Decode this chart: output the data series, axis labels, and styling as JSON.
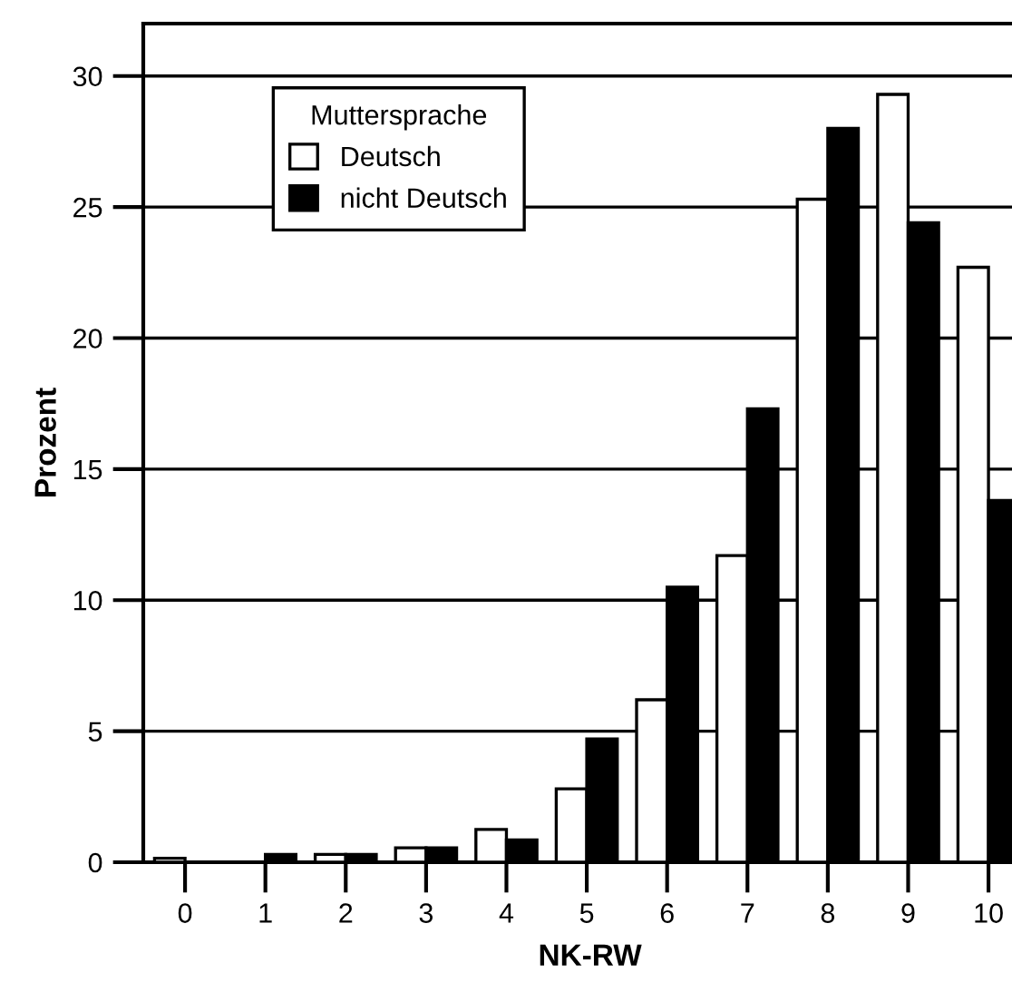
{
  "chart_data": {
    "type": "bar",
    "xlabel": "NK-RW",
    "ylabel": "Prozent",
    "legend_title": "Muttersprache",
    "categories": [
      "0",
      "1",
      "2",
      "3",
      "4",
      "5",
      "6",
      "7",
      "8",
      "9",
      "10"
    ],
    "series": [
      {
        "name": "Deutsch",
        "color": "#ffffff",
        "values": [
          0.15,
          null,
          0.3,
          0.55,
          1.25,
          2.8,
          6.2,
          11.7,
          25.3,
          29.3,
          22.7
        ]
      },
      {
        "name": "nicht Deutsch",
        "color": "#000000",
        "values": [
          null,
          0.3,
          0.3,
          0.55,
          0.85,
          4.7,
          10.5,
          17.3,
          28.0,
          24.4,
          13.8
        ]
      }
    ],
    "ylim": [
      0,
      32
    ],
    "yticks": [
      0,
      5,
      10,
      15,
      20,
      25,
      30
    ],
    "grid": "y",
    "legend": "top left"
  }
}
